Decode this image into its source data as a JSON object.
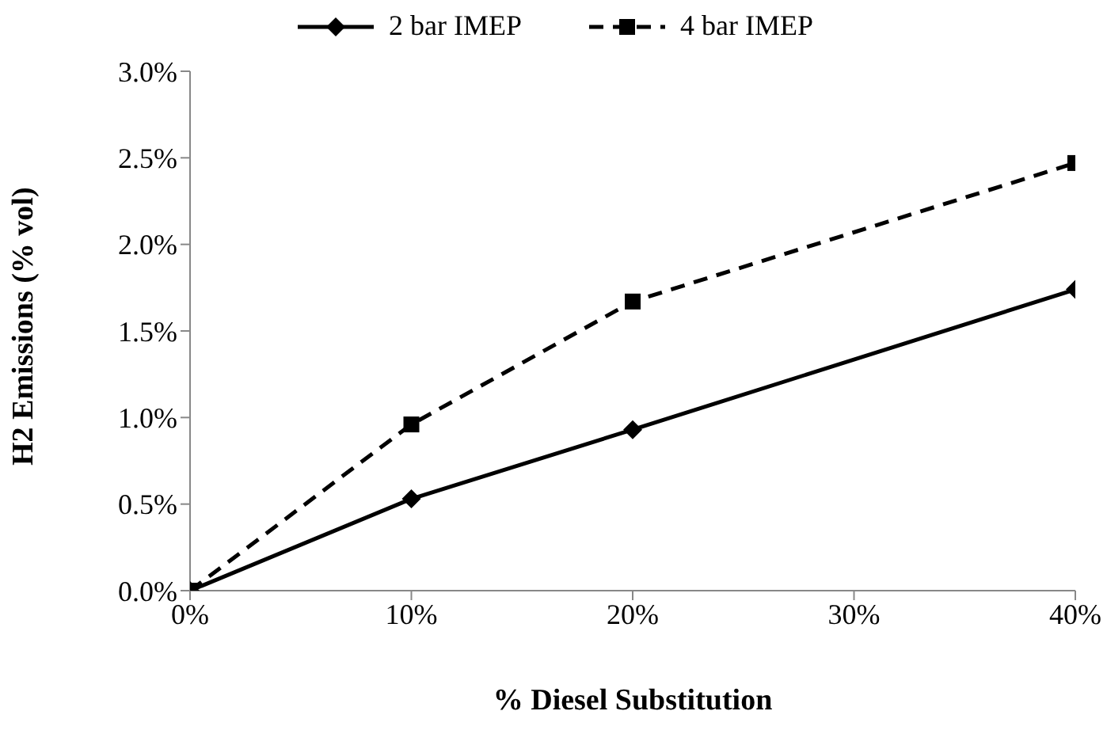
{
  "chart_data": {
    "type": "line",
    "xlabel": "% Diesel Substitution",
    "ylabel": "H2 Emissions (% vol)",
    "x": [
      0,
      10,
      20,
      40
    ],
    "series": [
      {
        "name": "2 bar IMEP",
        "color": "#000000",
        "marker": "diamond",
        "line_style": "solid",
        "values": [
          0,
          0.53,
          0.93,
          1.74
        ]
      },
      {
        "name": "4 bar IMEP",
        "color": "#000000",
        "marker": "square",
        "line_style": "dashed",
        "values": [
          0,
          0.96,
          1.67,
          2.47
        ]
      }
    ],
    "xlim": [
      0,
      40
    ],
    "xticks": [
      {
        "value": 0,
        "label": "0%"
      },
      {
        "value": 10,
        "label": "10%"
      },
      {
        "value": 20,
        "label": "20%"
      },
      {
        "value": 30,
        "label": "30%"
      },
      {
        "value": 40,
        "label": "40%"
      }
    ],
    "ylim": [
      0,
      3
    ],
    "yticks": [
      {
        "value": 0,
        "label": "0.0%"
      },
      {
        "value": 0.5,
        "label": "0.5%"
      },
      {
        "value": 1,
        "label": "1.0%"
      },
      {
        "value": 1.5,
        "label": "1.5%"
      },
      {
        "value": 2,
        "label": "2.0%"
      },
      {
        "value": 2.5,
        "label": "2.5%"
      },
      {
        "value": 3,
        "label": "3.0%"
      }
    ],
    "grid": false,
    "legend": "top"
  }
}
